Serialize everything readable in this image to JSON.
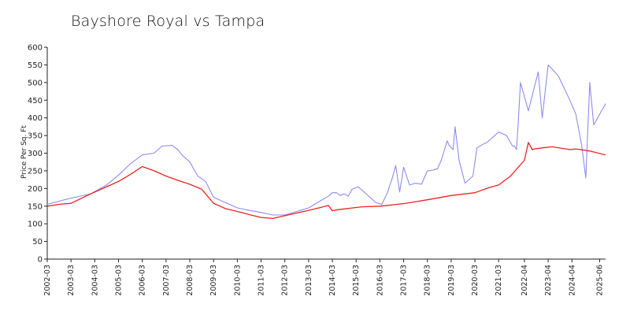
{
  "chart_data": {
    "type": "line",
    "title": "Bayshore Royal vs Tampa",
    "xlabel": "",
    "ylabel": "Price Per Sq. Ft",
    "xlim": [
      "2002-03",
      "2025-09"
    ],
    "ylim": [
      0,
      600
    ],
    "yticks": [
      0,
      50,
      100,
      150,
      200,
      250,
      300,
      350,
      400,
      450,
      500,
      550,
      600
    ],
    "xticks": [
      "2002-03",
      "2003-03",
      "2004-03",
      "2005-03",
      "2006-03",
      "2007-03",
      "2008-03",
      "2009-03",
      "2010-03",
      "2011-03",
      "2012-03",
      "2013-03",
      "2014-03",
      "2015-03",
      "2016-03",
      "2017-03",
      "2018-03",
      "2019-03",
      "2020-03",
      "2021-03",
      "2022-04",
      "2023-04",
      "2024-04",
      "2025-06"
    ],
    "grid": false,
    "legend": "none",
    "series": [
      {
        "color": "#8c8cf0",
        "x": [
          "2002-03",
          "2003-01",
          "2004-01",
          "2004-09",
          "2005-03",
          "2005-09",
          "2006-03",
          "2006-09",
          "2007-01",
          "2007-06",
          "2007-09",
          "2007-11",
          "2008-03",
          "2008-07",
          "2008-11",
          "2009-03",
          "2009-09",
          "2010-03",
          "2010-09",
          "2011-03",
          "2011-09",
          "2012-03",
          "2013-03",
          "2013-09",
          "2014-01",
          "2014-02",
          "2014-03",
          "2014-05",
          "2014-07",
          "2014-09",
          "2014-11",
          "2015-01",
          "2015-04",
          "2015-07",
          "2015-10",
          "2016-01",
          "2016-04",
          "2016-07",
          "2016-08",
          "2016-09",
          "2016-11",
          "2017-01",
          "2017-03",
          "2017-06",
          "2017-09",
          "2017-12",
          "2018-03",
          "2018-06",
          "2018-07",
          "2018-08",
          "2018-10",
          "2019-01",
          "2019-02",
          "2019-04",
          "2019-05",
          "2019-07",
          "2019-10",
          "2020-01",
          "2020-02",
          "2020-04",
          "2020-07",
          "2020-09",
          "2020-10",
          "2021-03",
          "2021-07",
          "2021-08",
          "2021-10",
          "2021-11",
          "2021-12",
          "2022-01",
          "2022-02",
          "2022-06",
          "2022-11",
          "2023-01",
          "2023-04",
          "2023-09",
          "2024-03",
          "2024-06",
          "2024-09",
          "2024-11",
          "2025-01",
          "2025-03",
          "2025-09"
        ],
        "y": [
          155,
          170,
          185,
          210,
          238,
          270,
          295,
          300,
          320,
          322,
          310,
          295,
          275,
          235,
          220,
          175,
          160,
          145,
          138,
          132,
          125,
          125,
          145,
          165,
          178,
          183,
          188,
          188,
          180,
          185,
          178,
          198,
          205,
          190,
          175,
          160,
          155,
          190,
          210,
          225,
          265,
          190,
          260,
          210,
          215,
          212,
          250,
          252,
          255,
          255,
          280,
          335,
          322,
          310,
          375,
          280,
          215,
          230,
          235,
          315,
          325,
          330,
          335,
          360,
          350,
          340,
          320,
          320,
          310,
          400,
          500,
          420,
          530,
          400,
          550,
          520,
          450,
          410,
          320,
          230,
          500,
          380,
          440
        ]
      },
      {
        "color": "#ee2222",
        "x": [
          "2002-03",
          "2002-09",
          "2003-03",
          "2004-01",
          "2004-09",
          "2005-03",
          "2005-09",
          "2006-03",
          "2006-09",
          "2007-03",
          "2007-09",
          "2008-03",
          "2008-09",
          "2009-03",
          "2009-09",
          "2010-03",
          "2010-09",
          "2011-03",
          "2011-09",
          "2012-03",
          "2013-03",
          "2013-09",
          "2014-01",
          "2014-03",
          "2014-06",
          "2015-03",
          "2015-06",
          "2016-03",
          "2017-03",
          "2018-03",
          "2019-03",
          "2020-03",
          "2020-10",
          "2021-03",
          "2021-09",
          "2022-04",
          "2022-06",
          "2022-08",
          "2022-09",
          "2023-01",
          "2023-06",
          "2024-03",
          "2024-06",
          "2025-01",
          "2025-09"
        ],
        "y": [
          150,
          155,
          158,
          185,
          205,
          220,
          240,
          262,
          250,
          235,
          223,
          212,
          198,
          158,
          143,
          135,
          126,
          118,
          115,
          123,
          138,
          146,
          152,
          137,
          140,
          146,
          148,
          150,
          157,
          168,
          180,
          188,
          202,
          210,
          235,
          280,
          330,
          310,
          312,
          315,
          318,
          310,
          312,
          306,
          295
        ]
      }
    ]
  }
}
